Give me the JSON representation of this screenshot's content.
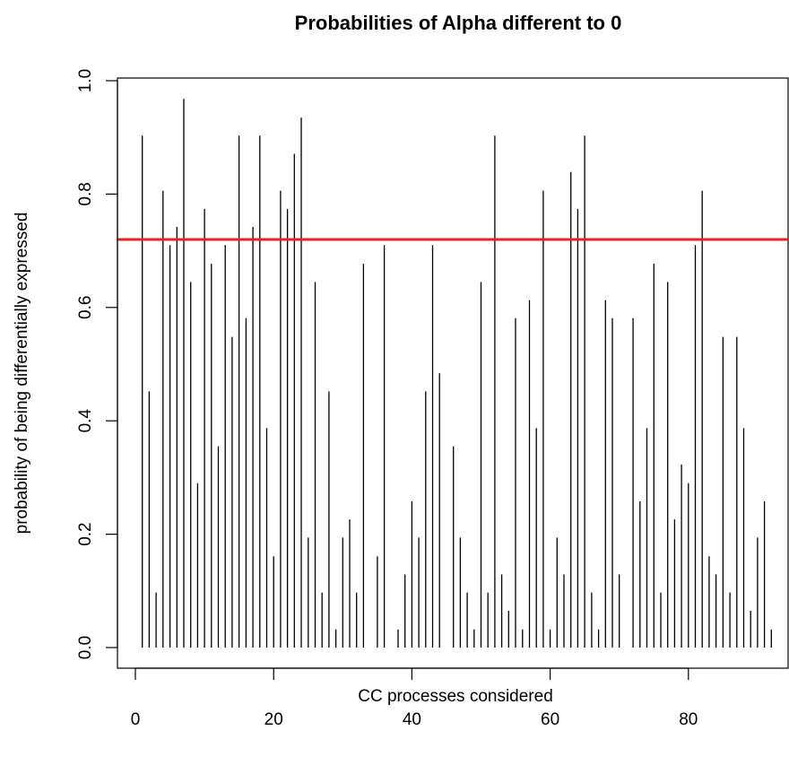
{
  "chart_data": {
    "type": "bar",
    "style": "vertical-spikes",
    "title": "Probabilities of Alpha different to 0",
    "xlabel": "CC processes considered",
    "ylabel": "probability of being differentially expressed",
    "xlim": [
      0,
      92
    ],
    "ylim": [
      0,
      1
    ],
    "xticks": [
      0,
      20,
      40,
      60,
      80
    ],
    "xtick_labels": [
      "0",
      "20",
      "40",
      "60",
      "80"
    ],
    "yticks": [
      0.0,
      0.2,
      0.4,
      0.6,
      0.8,
      1.0
    ],
    "ytick_labels": [
      "0.0",
      "0.2",
      "0.4",
      "0.6",
      "0.8",
      "1.0"
    ],
    "x": [
      1,
      2,
      3,
      4,
      5,
      6,
      7,
      8,
      9,
      10,
      11,
      12,
      13,
      14,
      15,
      16,
      17,
      18,
      19,
      20,
      21,
      22,
      23,
      24,
      25,
      26,
      27,
      28,
      29,
      30,
      31,
      32,
      33,
      34,
      35,
      36,
      37,
      38,
      39,
      40,
      41,
      42,
      43,
      44,
      45,
      46,
      47,
      48,
      49,
      50,
      51,
      52,
      53,
      54,
      55,
      56,
      57,
      58,
      59,
      60,
      61,
      62,
      63,
      64,
      65,
      66,
      67,
      68,
      69,
      70,
      71,
      72,
      73,
      74,
      75,
      76,
      77,
      78,
      79,
      80,
      81,
      82,
      83,
      84,
      85,
      86,
      87,
      88,
      89,
      90,
      91,
      92
    ],
    "values": [
      0.903,
      0.452,
      0.097,
      0.806,
      0.71,
      0.742,
      0.968,
      0.645,
      0.29,
      0.774,
      0.677,
      0.355,
      0.71,
      0.548,
      0.903,
      0.581,
      0.742,
      0.903,
      0.387,
      0.161,
      0.806,
      0.774,
      0.871,
      0.935,
      0.194,
      0.645,
      0.097,
      0.452,
      0.032,
      0.194,
      0.226,
      0.097,
      0.677,
      0.0,
      0.161,
      0.71,
      0.0,
      0.032,
      0.129,
      0.258,
      0.194,
      0.452,
      0.71,
      0.484,
      0.0,
      0.355,
      0.194,
      0.097,
      0.032,
      0.645,
      0.097,
      0.903,
      0.129,
      0.065,
      0.581,
      0.032,
      0.613,
      0.387,
      0.806,
      0.032,
      0.194,
      0.129,
      0.839,
      0.774,
      0.903,
      0.097,
      0.032,
      0.613,
      0.581,
      0.129,
      0.0,
      0.581,
      0.258,
      0.387,
      0.677,
      0.097,
      0.645,
      0.226,
      0.323,
      0.29,
      0.71,
      0.806,
      0.161,
      0.129,
      0.548,
      0.097,
      0.548,
      0.387,
      0.065,
      0.194,
      0.258,
      0.032
    ],
    "threshold": {
      "value": 0.72,
      "color": "#e8211c"
    },
    "colors": {
      "spike": "#000000",
      "threshold": "#e8211c",
      "axis": "#000000"
    },
    "grid": false,
    "legend": "none"
  }
}
